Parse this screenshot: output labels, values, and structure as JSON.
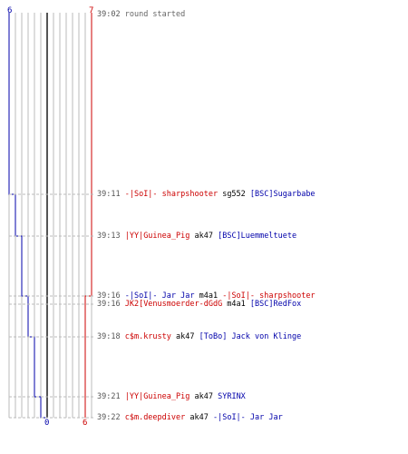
{
  "scores": {
    "blue_top": "6",
    "red_top": "7",
    "blue_bottom": "0",
    "red_bottom": "6"
  },
  "colors": {
    "blue": "#0000aa",
    "red": "#cc0000",
    "grid": "#bbbbbb",
    "center": "#555555"
  },
  "log": [
    {
      "time": "39:02",
      "message": "round started",
      "killer": "",
      "weapon": "",
      "victim": ""
    },
    {
      "time": "39:11",
      "killer": "-|SoI|- sharpshooter",
      "killer_team": "red",
      "weapon": "sg552",
      "victim": "[BSC]Sugarbabe",
      "victim_team": "blue"
    },
    {
      "time": "39:13",
      "killer": "|YY|Guinea_Pig",
      "killer_team": "red",
      "weapon": "ak47",
      "victim": "[BSC]Luemmeltuete",
      "victim_team": "blue"
    },
    {
      "time": "39:16",
      "killer": "-|SoI|- Jar Jar",
      "killer_team": "blue",
      "weapon": "m4a1",
      "victim": "-|SoI|- sharpshooter",
      "victim_team": "red"
    },
    {
      "time": "39:16",
      "killer": "JK2[Venusmoerder-dGdG",
      "killer_team": "red",
      "weapon": "m4a1",
      "victim": "[BSC]RedFox",
      "victim_team": "blue"
    },
    {
      "time": "39:18",
      "killer": "c$m.krusty",
      "killer_team": "red",
      "weapon": "ak47",
      "victim": "[ToBo] Jack von Klinge",
      "victim_team": "blue"
    },
    {
      "time": "39:21",
      "killer": "|YY|Guinea_Pig",
      "killer_team": "red",
      "weapon": "ak47",
      "victim": "SYRINX",
      "victim_team": "blue"
    },
    {
      "time": "39:22",
      "killer": "c$m.deepdiver",
      "killer_team": "red",
      "weapon": "ak47",
      "victim": "-|SoI|- Jar Jar",
      "victim_team": "blue"
    }
  ]
}
